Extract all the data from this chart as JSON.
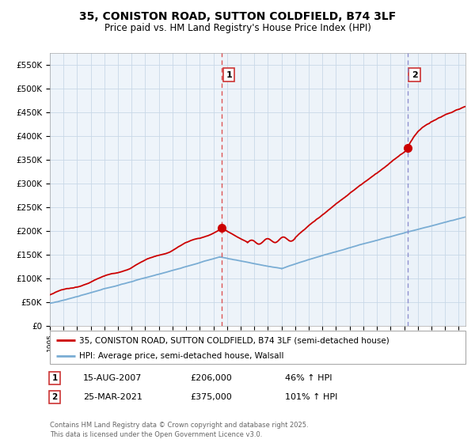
{
  "title": "35, CONISTON ROAD, SUTTON COLDFIELD, B74 3LF",
  "subtitle": "Price paid vs. HM Land Registry's House Price Index (HPI)",
  "ylabel_ticks": [
    "£0",
    "£50K",
    "£100K",
    "£150K",
    "£200K",
    "£250K",
    "£300K",
    "£350K",
    "£400K",
    "£450K",
    "£500K",
    "£550K"
  ],
  "ytick_vals": [
    0,
    50000,
    100000,
    150000,
    200000,
    250000,
    300000,
    350000,
    400000,
    450000,
    500000,
    550000
  ],
  "ylim": [
    0,
    575000
  ],
  "xmin": 1995.0,
  "xmax": 2025.5,
  "marker1_x": 2007.62,
  "marker1_y": 206000,
  "marker1_label": "1",
  "marker1_date": "15-AUG-2007",
  "marker1_price": "£206,000",
  "marker1_hpi": "46% ↑ HPI",
  "marker2_x": 2021.23,
  "marker2_y": 375000,
  "marker2_label": "2",
  "marker2_date": "25-MAR-2021",
  "marker2_price": "£375,000",
  "marker2_hpi": "101% ↑ HPI",
  "legend_line1": "35, CONISTON ROAD, SUTTON COLDFIELD, B74 3LF (semi-detached house)",
  "legend_line2": "HPI: Average price, semi-detached house, Walsall",
  "footer": "Contains HM Land Registry data © Crown copyright and database right 2025.\nThis data is licensed under the Open Government Licence v3.0.",
  "line_color_red": "#cc0000",
  "line_color_blue": "#7aadd4",
  "vline_color": "#dd4444",
  "vline2_color": "#8888cc",
  "bg_highlight": "#e8f0f8",
  "chart_bg": "#eef4fa",
  "background_color": "#ffffff",
  "grid_color": "#c8d8e8"
}
